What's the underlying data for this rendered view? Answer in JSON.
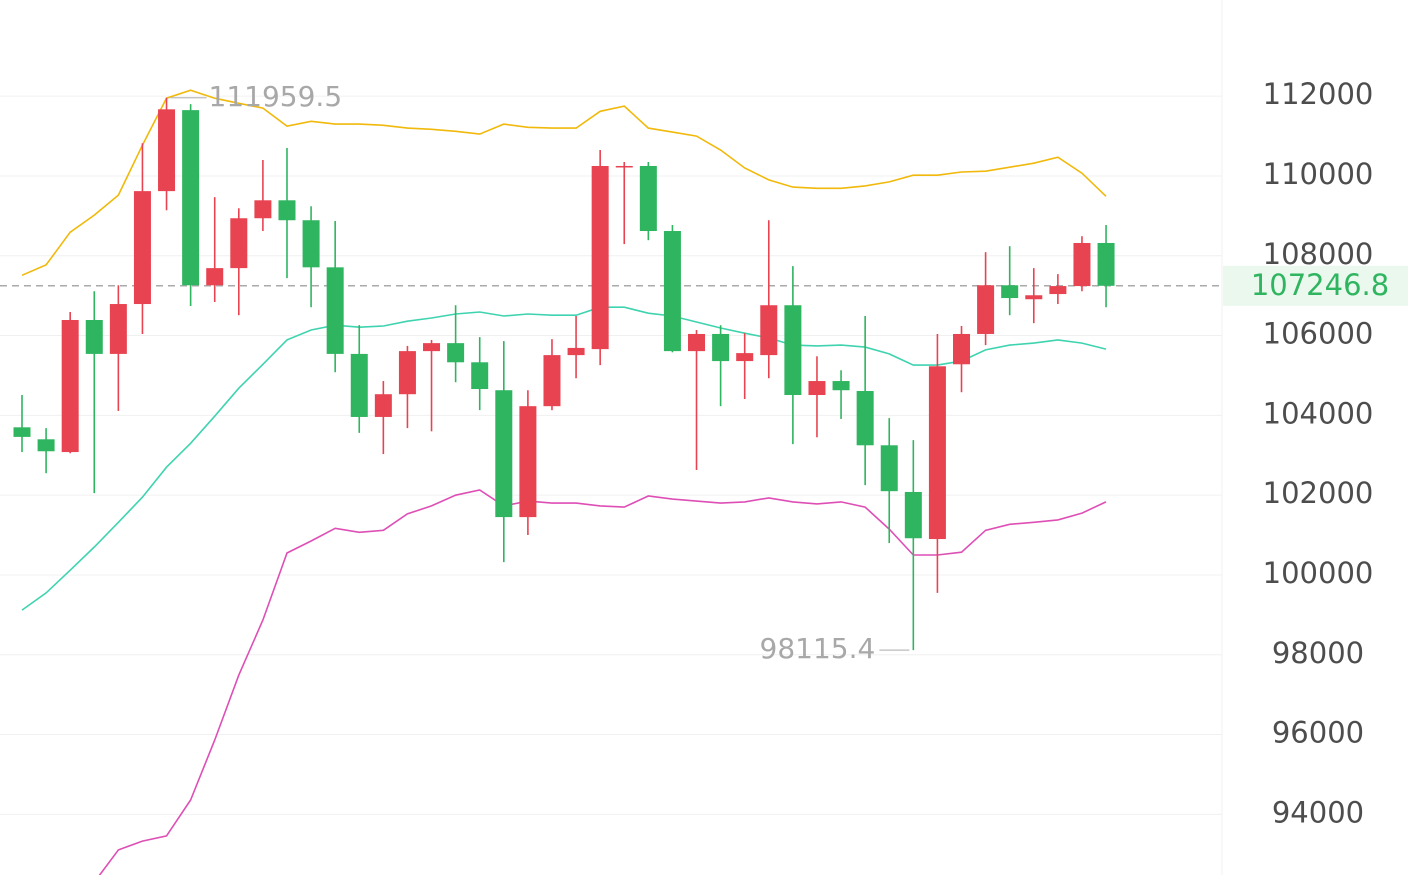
{
  "chart_data": {
    "type": "candlestick",
    "color_up": "#e84351",
    "color_down": "#2fb55f",
    "open": [
      103700,
      103400,
      103080,
      106390,
      105540,
      106790,
      109620,
      111650,
      107260,
      107690,
      108940,
      109390,
      108890,
      107710,
      105540,
      103960,
      104530,
      105610,
      105810,
      105330,
      104630,
      101450,
      104230,
      105510,
      105660,
      110220,
      110250,
      108620,
      105610,
      106040,
      105360,
      105510,
      106760,
      104510,
      104860,
      104610,
      103250,
      102080,
      100900,
      105280,
      106040,
      107260,
      106910,
      107040,
      107240,
      108320
    ],
    "high": [
      104510,
      103680,
      106590,
      107110,
      107260,
      110820,
      111959.5,
      111800,
      109470,
      109190,
      110400,
      110700,
      109240,
      108870,
      106260,
      104860,
      105740,
      105890,
      106760,
      105960,
      105860,
      104630,
      105910,
      106490,
      110650,
      110350,
      110350,
      108770,
      106140,
      106260,
      106060,
      108890,
      107740,
      105480,
      105130,
      106490,
      103930,
      103380,
      106040,
      106240,
      108090,
      108240,
      107690,
      107540,
      108490,
      108770
    ],
    "low": [
      103080,
      102550,
      103050,
      102050,
      104110,
      106040,
      109140,
      106740,
      106840,
      106510,
      108620,
      107440,
      106710,
      105080,
      103560,
      103030,
      103680,
      103600,
      104830,
      104130,
      100320,
      101000,
      104130,
      104930,
      105260,
      108290,
      108390,
      105580,
      102630,
      104230,
      104410,
      104930,
      103280,
      103450,
      103910,
      102250,
      100800,
      98115.4,
      99550,
      104580,
      105760,
      106510,
      106310,
      106790,
      107110,
      106710
    ],
    "close": [
      103460,
      103100,
      106390,
      105540,
      106790,
      109620,
      111670,
      107260,
      107690,
      108940,
      109390,
      108890,
      107710,
      105540,
      103960,
      104530,
      105610,
      105810,
      105330,
      104660,
      101450,
      104230,
      105510,
      105690,
      110250,
      110250,
      108620,
      105610,
      106040,
      105360,
      105560,
      106760,
      104510,
      104860,
      104630,
      103250,
      102100,
      100920,
      105230,
      106040,
      107260,
      106940,
      107010,
      107240,
      108320,
      107246.8
    ],
    "overlays": [
      {
        "color": "#f0b90b",
        "values": [
          107510,
          107770,
          108590,
          109020,
          109520,
          110770,
          111950,
          112150,
          111950,
          111820,
          111700,
          111250,
          111370,
          111300,
          111300,
          111270,
          111200,
          111170,
          111120,
          111050,
          111300,
          111220,
          111200,
          111200,
          111620,
          111750,
          111200,
          111100,
          111000,
          110650,
          110200,
          109900,
          109720,
          109690,
          109690,
          109750,
          109850,
          110020,
          110020,
          110100,
          110120,
          110220,
          110320,
          110470,
          110070,
          109490
        ]
      },
      {
        "color": "#3fd3b0",
        "values": [
          99120,
          99550,
          100120,
          100700,
          101320,
          101950,
          102700,
          103300,
          103980,
          104680,
          105280,
          105890,
          106140,
          106260,
          106210,
          106240,
          106360,
          106440,
          106540,
          106590,
          106490,
          106540,
          106510,
          106510,
          106710,
          106710,
          106560,
          106490,
          106340,
          106190,
          106060,
          105940,
          105760,
          105740,
          105760,
          105710,
          105540,
          105260,
          105260,
          105360,
          105640,
          105760,
          105810,
          105890,
          105810,
          105660
        ]
      },
      {
        "color": "#de4fb6",
        "values": [
          null,
          null,
          null,
          92300,
          93110,
          93330,
          93460,
          94360,
          95860,
          97490,
          98870,
          100550,
          100850,
          101170,
          101070,
          101120,
          101530,
          101730,
          102000,
          102130,
          101730,
          101850,
          101800,
          101800,
          101730,
          101700,
          101980,
          101900,
          101850,
          101800,
          101830,
          101930,
          101830,
          101780,
          101830,
          101700,
          101150,
          100500,
          100500,
          100570,
          101120,
          101270,
          101320,
          101380,
          101550,
          101830
        ]
      }
    ],
    "ylim": [
      92480,
      114410
    ],
    "yticks": [
      94000,
      96000,
      98000,
      100000,
      102000,
      104000,
      106000,
      108000,
      110000,
      112000
    ],
    "grid": true
  }
}
